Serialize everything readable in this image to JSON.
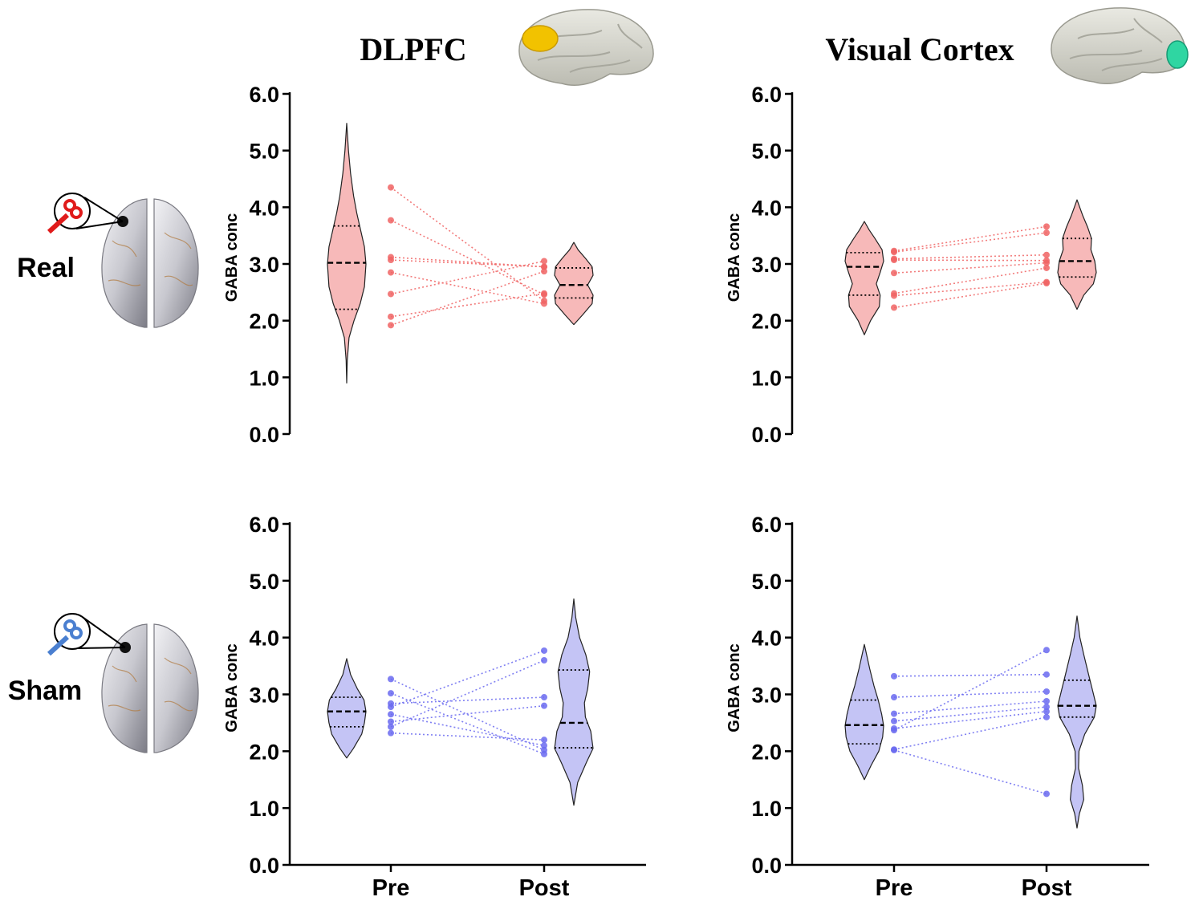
{
  "figure": {
    "columns": [
      "DLPFC",
      "Visual Cortex"
    ],
    "rows": [
      "Real",
      "Sham"
    ],
    "column_brain_icons": [
      {
        "name": "brain-lateral-dlpfc-icon",
        "highlight": "#f2c200"
      },
      {
        "name": "brain-lateral-visual-cortex-icon",
        "highlight": "#2fd6a2"
      }
    ],
    "row_brain_icons": [
      {
        "name": "brain-top-coil-real-icon",
        "coil_color": "#e01b1b"
      },
      {
        "name": "brain-top-coil-sham-icon",
        "coil_color": "#4a7fd0"
      }
    ]
  },
  "colors": {
    "real_fill": "#f7b9b9",
    "real_point": "#f06464",
    "sham_fill": "#c4c4f5",
    "sham_point": "#6a6af0",
    "axis": "#000000"
  },
  "chart_data": [
    {
      "type": "violin",
      "panel": "Real - DLPFC",
      "ylabel": "GABA conc",
      "ylim": [
        0,
        6
      ],
      "yticks": [
        "0.0",
        "1.0",
        "2.0",
        "3.0",
        "4.0",
        "5.0",
        "6.0"
      ],
      "categories": [
        "Pre",
        "Post"
      ],
      "show_xticks": false,
      "pre": [
        4.35,
        3.77,
        3.12,
        3.07,
        2.85,
        2.47,
        2.07,
        1.92
      ],
      "post": [
        2.35,
        2.46,
        2.95,
        2.95,
        2.3,
        3.05,
        2.48,
        2.87
      ],
      "violins": [
        {
          "min": 0.9,
          "max": 5.48,
          "median": 3.02,
          "q1": 2.2,
          "q3": 3.67,
          "shape": [
            [
              0.9,
              0
            ],
            [
              1.3,
              0.03
            ],
            [
              1.7,
              0.12
            ],
            [
              2.0,
              0.38
            ],
            [
              2.3,
              0.7
            ],
            [
              2.6,
              0.92
            ],
            [
              3.0,
              1.0
            ],
            [
              3.3,
              0.92
            ],
            [
              3.6,
              0.72
            ],
            [
              3.9,
              0.52
            ],
            [
              4.2,
              0.36
            ],
            [
              4.6,
              0.2
            ],
            [
              5.0,
              0.09
            ],
            [
              5.48,
              0
            ]
          ]
        },
        {
          "min": 1.93,
          "max": 3.38,
          "median": 2.63,
          "q1": 2.4,
          "q3": 2.93,
          "shape": [
            [
              1.93,
              0
            ],
            [
              2.1,
              0.45
            ],
            [
              2.3,
              0.95
            ],
            [
              2.45,
              1.0
            ],
            [
              2.63,
              0.72
            ],
            [
              2.8,
              1.0
            ],
            [
              2.95,
              0.95
            ],
            [
              3.1,
              0.6
            ],
            [
              3.25,
              0.22
            ],
            [
              3.38,
              0
            ]
          ]
        }
      ]
    },
    {
      "type": "violin",
      "panel": "Real - Visual Cortex",
      "ylabel": "GABA conc",
      "ylim": [
        0,
        6
      ],
      "yticks": [
        "0.0",
        "1.0",
        "2.0",
        "3.0",
        "4.0",
        "5.0",
        "6.0"
      ],
      "categories": [
        "Pre",
        "Post"
      ],
      "show_xticks": false,
      "pre": [
        3.23,
        3.21,
        3.09,
        3.07,
        2.84,
        2.48,
        2.44,
        2.23
      ],
      "post": [
        3.66,
        3.55,
        3.16,
        3.06,
        3.02,
        2.93,
        2.68,
        2.66
      ],
      "violins": [
        {
          "min": 1.75,
          "max": 3.75,
          "median": 2.95,
          "q1": 2.45,
          "q3": 3.2,
          "shape": [
            [
              1.75,
              0
            ],
            [
              2.0,
              0.32
            ],
            [
              2.25,
              0.78
            ],
            [
              2.45,
              0.82
            ],
            [
              2.65,
              0.62
            ],
            [
              2.85,
              0.82
            ],
            [
              3.05,
              1.0
            ],
            [
              3.25,
              0.92
            ],
            [
              3.45,
              0.55
            ],
            [
              3.6,
              0.25
            ],
            [
              3.75,
              0
            ]
          ]
        },
        {
          "min": 2.2,
          "max": 4.13,
          "median": 3.05,
          "q1": 2.77,
          "q3": 3.45,
          "shape": [
            [
              2.2,
              0
            ],
            [
              2.45,
              0.35
            ],
            [
              2.65,
              0.85
            ],
            [
              2.85,
              1.0
            ],
            [
              3.05,
              0.92
            ],
            [
              3.25,
              0.72
            ],
            [
              3.45,
              0.75
            ],
            [
              3.65,
              0.55
            ],
            [
              3.85,
              0.3
            ],
            [
              4.13,
              0
            ]
          ]
        }
      ]
    },
    {
      "type": "violin",
      "panel": "Sham - DLPFC",
      "ylabel": "GABA conc",
      "ylim": [
        0,
        6
      ],
      "yticks": [
        "0.0",
        "1.0",
        "2.0",
        "3.0",
        "4.0",
        "5.0",
        "6.0"
      ],
      "categories": [
        "Pre",
        "Post"
      ],
      "show_xticks": true,
      "pre": [
        3.27,
        3.02,
        2.84,
        2.78,
        2.65,
        2.52,
        2.43,
        2.32
      ],
      "post": [
        2.02,
        1.95,
        2.95,
        3.77,
        2.1,
        2.8,
        3.6,
        2.2
      ],
      "violins": [
        {
          "min": 1.88,
          "max": 3.63,
          "median": 2.7,
          "q1": 2.43,
          "q3": 2.95,
          "shape": [
            [
              1.88,
              0
            ],
            [
              2.05,
              0.35
            ],
            [
              2.3,
              0.78
            ],
            [
              2.5,
              0.92
            ],
            [
              2.7,
              1.0
            ],
            [
              2.9,
              0.9
            ],
            [
              3.1,
              0.55
            ],
            [
              3.35,
              0.2
            ],
            [
              3.63,
              0
            ]
          ]
        },
        {
          "min": 1.05,
          "max": 4.68,
          "median": 2.5,
          "q1": 2.06,
          "q3": 3.43,
          "shape": [
            [
              1.05,
              0
            ],
            [
              1.45,
              0.2
            ],
            [
              1.8,
              0.65
            ],
            [
              2.05,
              1.0
            ],
            [
              2.35,
              0.88
            ],
            [
              2.6,
              0.6
            ],
            [
              2.85,
              0.55
            ],
            [
              3.1,
              0.72
            ],
            [
              3.4,
              0.82
            ],
            [
              3.7,
              0.62
            ],
            [
              4.0,
              0.3
            ],
            [
              4.35,
              0.1
            ],
            [
              4.68,
              0
            ]
          ]
        }
      ]
    },
    {
      "type": "violin",
      "panel": "Sham - Visual Cortex",
      "ylabel": "GABA conc",
      "ylim": [
        0,
        6
      ],
      "yticks": [
        "0.0",
        "1.0",
        "2.0",
        "3.0",
        "4.0",
        "5.0",
        "6.0"
      ],
      "categories": [
        "Pre",
        "Post"
      ],
      "show_xticks": true,
      "pre": [
        3.32,
        2.95,
        2.66,
        2.53,
        2.4,
        2.37,
        2.03,
        2.02
      ],
      "post": [
        3.35,
        3.05,
        2.88,
        2.78,
        2.7,
        3.78,
        2.6,
        1.25
      ],
      "violins": [
        {
          "min": 1.5,
          "max": 3.88,
          "median": 2.46,
          "q1": 2.13,
          "q3": 2.9,
          "shape": [
            [
              1.5,
              0
            ],
            [
              1.75,
              0.35
            ],
            [
              2.0,
              0.75
            ],
            [
              2.25,
              0.95
            ],
            [
              2.45,
              1.0
            ],
            [
              2.65,
              0.9
            ],
            [
              2.9,
              0.72
            ],
            [
              3.15,
              0.5
            ],
            [
              3.45,
              0.28
            ],
            [
              3.88,
              0
            ]
          ]
        },
        {
          "min": 0.65,
          "max": 4.38,
          "median": 2.8,
          "q1": 2.6,
          "q3": 3.25,
          "shape": [
            [
              0.65,
              0
            ],
            [
              0.9,
              0.12
            ],
            [
              1.15,
              0.35
            ],
            [
              1.4,
              0.28
            ],
            [
              1.7,
              0.08
            ],
            [
              2.0,
              0.1
            ],
            [
              2.3,
              0.4
            ],
            [
              2.6,
              0.9
            ],
            [
              2.8,
              1.0
            ],
            [
              3.05,
              0.82
            ],
            [
              3.35,
              0.6
            ],
            [
              3.7,
              0.35
            ],
            [
              4.0,
              0.15
            ],
            [
              4.38,
              0
            ]
          ]
        }
      ]
    }
  ]
}
